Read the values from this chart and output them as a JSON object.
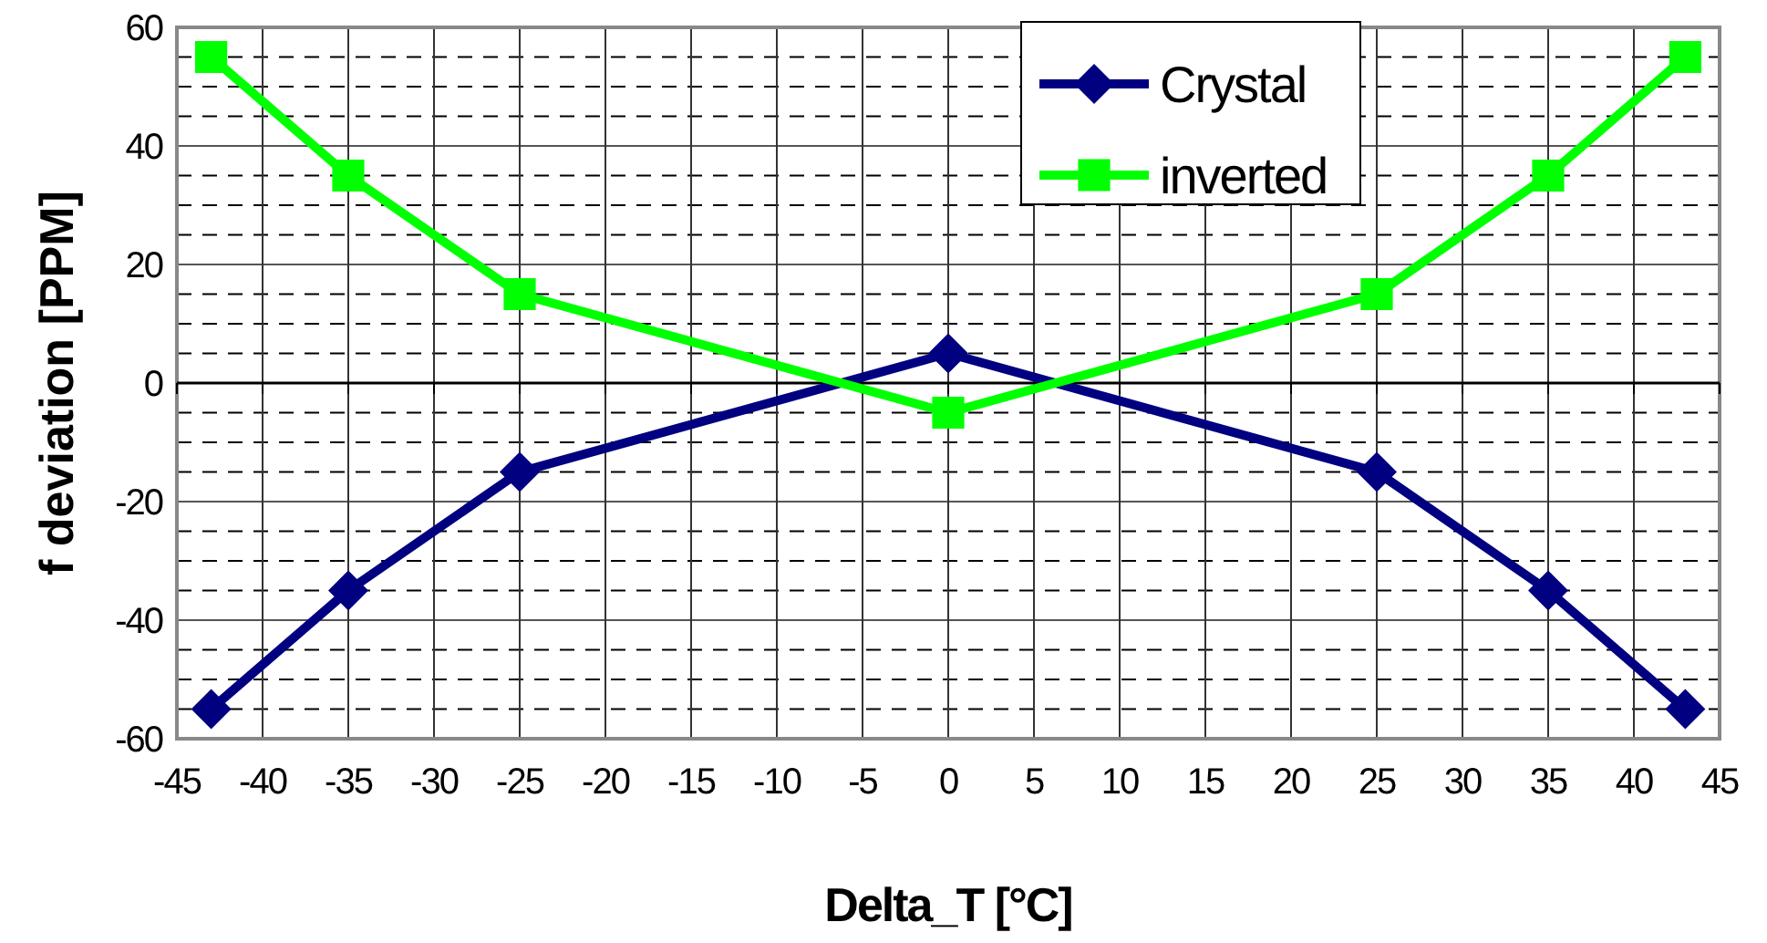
{
  "chart_data": {
    "type": "line",
    "xlabel": "Delta_T [°C]",
    "ylabel": "f deviation [PPM]",
    "x": [
      -43,
      -35,
      -25,
      0,
      25,
      35,
      43
    ],
    "series": [
      {
        "name": "Crystal",
        "color": "#000080",
        "marker": "diamond",
        "values": [
          -55,
          -35,
          -15,
          5,
          -15,
          -35,
          -55
        ]
      },
      {
        "name": "inverted",
        "color": "#00ff00",
        "marker": "square",
        "values": [
          55,
          35,
          15,
          -5,
          15,
          35,
          55
        ]
      }
    ],
    "xlim": [
      -45,
      45
    ],
    "xticks": [
      -45,
      -40,
      -35,
      -30,
      -25,
      -20,
      -15,
      -10,
      -5,
      0,
      5,
      10,
      15,
      20,
      25,
      30,
      35,
      40,
      45
    ],
    "ylim": [
      -60,
      60
    ],
    "yticks": [
      -60,
      -40,
      -20,
      0,
      20,
      40,
      60
    ],
    "grid": true,
    "legend": "top",
    "line_style": "solid"
  }
}
